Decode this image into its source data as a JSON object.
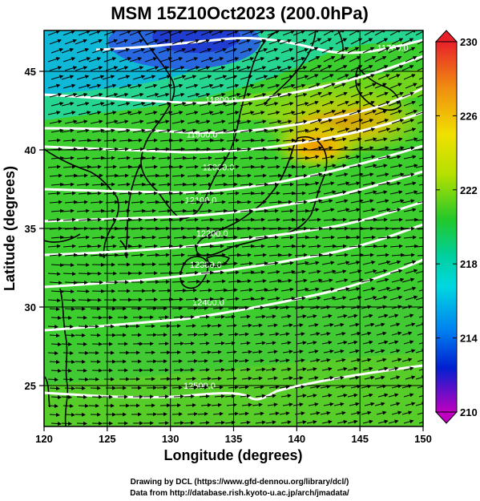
{
  "figure": {
    "title": "MSM 15Z10Oct2023 (200.0hPa)",
    "xlabel": "Longitude (degrees)",
    "ylabel": "Latitude  (degrees)",
    "credit_line1": "Drawing by DCL (https://www.gfd-dennou.org/library/dcl/)",
    "credit_line2": "Data from http://database.rish.kyoto-u.ac.jp/arch/jmadata/"
  },
  "map": {
    "lon_range": [
      120,
      150
    ],
    "lat_range": [
      22.4,
      47.6
    ],
    "lon_ticks": [
      "120",
      "125",
      "130",
      "135",
      "140",
      "145",
      "150"
    ],
    "lat_ticks": [
      "25",
      "30",
      "35",
      "40",
      "45"
    ],
    "grid": true,
    "contour_labels": [
      {
        "text": "11700.0",
        "lon": 147.6,
        "lat": 46.5
      },
      {
        "text": "11800.0",
        "lon": 134.0,
        "lat": 43.2
      },
      {
        "text": "11900.0",
        "lon": 132.5,
        "lat": 41.0
      },
      {
        "text": "12000.0",
        "lon": 133.8,
        "lat": 38.9
      },
      {
        "text": "12100.0",
        "lon": 132.4,
        "lat": 36.8
      },
      {
        "text": "12200.0",
        "lon": 133.3,
        "lat": 34.7
      },
      {
        "text": "12300.0",
        "lon": 132.8,
        "lat": 32.7
      },
      {
        "text": "12400.0",
        "lon": 133.0,
        "lat": 30.3
      },
      {
        "text": "12500.0",
        "lon": 132.3,
        "lat": 25.0
      }
    ],
    "colorbar": {
      "ticks": [
        "230",
        "226",
        "222",
        "218",
        "214",
        "210"
      ],
      "range": [
        210,
        230
      ]
    }
  },
  "colors": {
    "low": "#c000c0",
    "blue": "#0000c8",
    "cyan": "#00d8d8",
    "green": "#22c82a",
    "yellow": "#e8e800",
    "orange": "#f0a000",
    "high": "#e02020",
    "contour": "#ffffff",
    "arrow": "#000000"
  }
}
